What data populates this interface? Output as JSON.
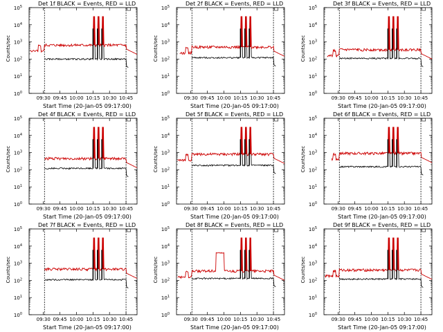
{
  "chart_data": {
    "type": "line",
    "series_colors": {
      "events": "#000000",
      "lld": "#cc0000"
    },
    "ylabel": "Counts/sec",
    "xlabel": "Start Time (20-Jan-05 09:17:00)",
    "x_ticks": [
      "09:30",
      "09:45",
      "10:00",
      "10:15",
      "10:30",
      "10:45"
    ],
    "x_tick_minutes": [
      30,
      45,
      60,
      75,
      90,
      105
    ],
    "xlim_minutes": [
      17,
      115
    ],
    "y_scale": "log",
    "ylim": [
      1,
      100000
    ],
    "y_ticks": [
      {
        "value": 1,
        "base": "10",
        "exp": "0"
      },
      {
        "value": 10,
        "base": "10",
        "exp": "1"
      },
      {
        "value": 100,
        "base": "10",
        "exp": "2"
      },
      {
        "value": 1000,
        "base": "10",
        "exp": "3"
      },
      {
        "value": 10000,
        "base": "10",
        "exp": "4"
      },
      {
        "value": 100000,
        "base": "10",
        "exp": "5"
      }
    ],
    "dashed_markers_minutes": [
      31,
      105
    ],
    "spike_minutes": [
      76,
      80,
      84
    ],
    "panels": [
      {
        "title": "Det 1f BLACK = Events, RED = LLD",
        "events_level": 100,
        "lld_level": 650,
        "spike_peak": 30000,
        "bump": false,
        "lld_start": 18
      },
      {
        "title": "Det 2f BLACK = Events, RED = LLD",
        "events_level": 120,
        "lld_level": 500,
        "spike_peak": 30000,
        "bump": false,
        "lld_start": 20
      },
      {
        "title": "Det 3f BLACK = Events, RED = LLD",
        "events_level": 110,
        "lld_level": 350,
        "spike_peak": 30000,
        "bump": false,
        "lld_start": 20
      },
      {
        "title": "Det 4f BLACK = Events, RED = LLD",
        "events_level": 120,
        "lld_level": 450,
        "spike_peak": 30000,
        "bump": false,
        "lld_start": 31
      },
      {
        "title": "Det 5f BLACK = Events, RED = LLD",
        "events_level": 180,
        "lld_level": 800,
        "spike_peak": 30000,
        "bump": false,
        "lld_start": 18
      },
      {
        "title": "Det 6f BLACK = Events, RED = LLD",
        "events_level": 150,
        "lld_level": 900,
        "spike_peak": 30000,
        "bump": false,
        "lld_start": 24
      },
      {
        "title": "Det 7f BLACK = Events, RED = LLD",
        "events_level": 110,
        "lld_level": 450,
        "spike_peak": 30000,
        "bump": false,
        "lld_start": 31
      },
      {
        "title": "Det 8f BLACK = Events, RED = LLD",
        "events_level": 130,
        "lld_level": 350,
        "spike_peak": 30000,
        "bump": true,
        "lld_start": 18
      },
      {
        "title": "Det 9f BLACK = Events, RED = LLD",
        "events_level": 120,
        "lld_level": 400,
        "spike_peak": 30000,
        "bump": false,
        "lld_start": 18
      }
    ]
  }
}
